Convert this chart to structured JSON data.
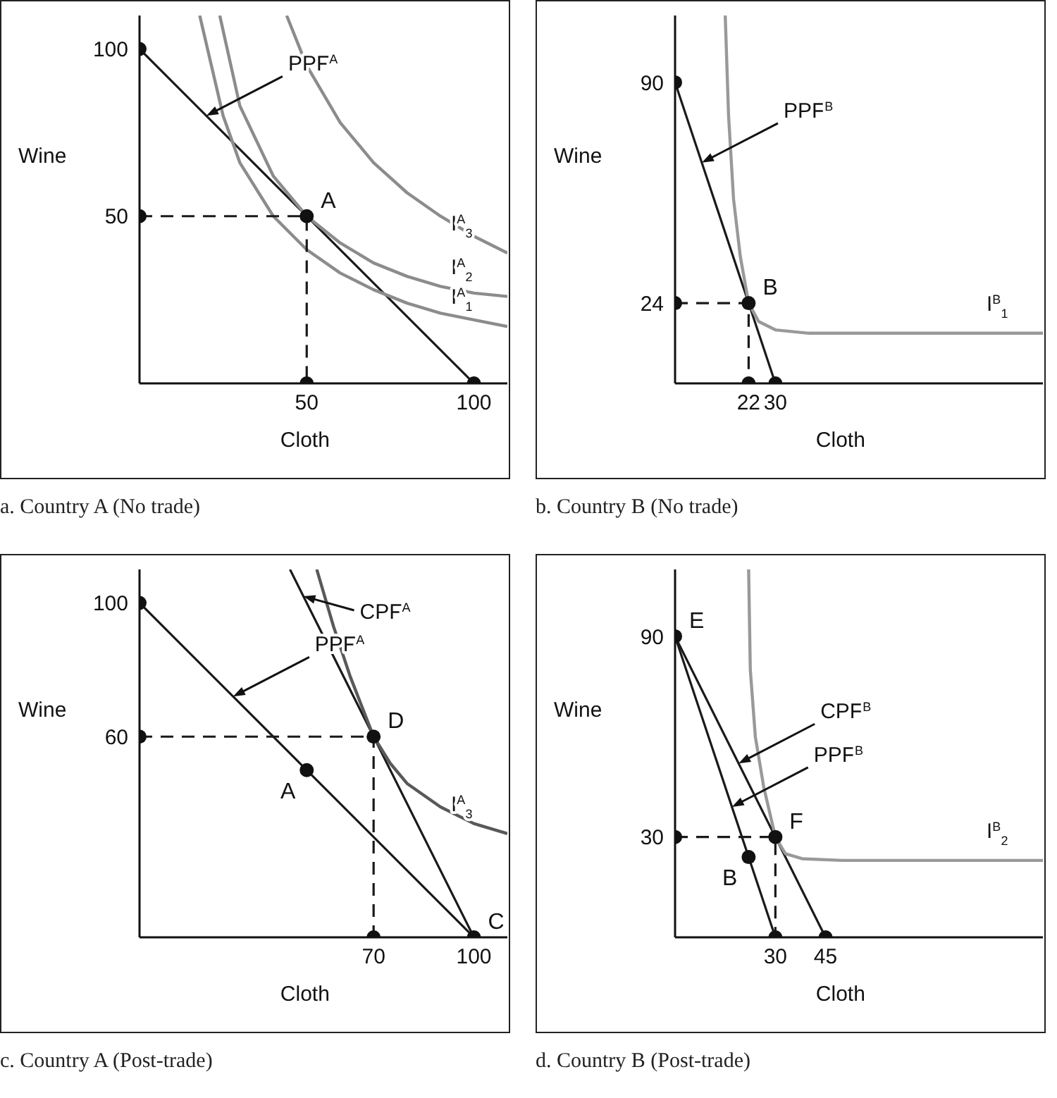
{
  "chart_data": [
    {
      "type": "line",
      "title": "a. Country A (No trade)",
      "xlabel": "Cloth",
      "ylabel": "Wine",
      "xlim": [
        0,
        110
      ],
      "ylim": [
        0,
        110
      ],
      "xticks": [
        50,
        100
      ],
      "yticks": [
        50,
        100
      ],
      "series": [
        {
          "type": "line",
          "color": "#1a1a1a",
          "x": [
            0,
            100
          ],
          "values": [
            100,
            0
          ]
        },
        {
          "type": "line",
          "name": "I$^{A}$$_{3}$",
          "color": "#8c8c8c",
          "x": [
            44,
            50,
            60,
            70,
            80,
            90,
            100,
            110
          ],
          "values": [
            110,
            95,
            78,
            66,
            57,
            50,
            44,
            39
          ]
        },
        {
          "type": "line",
          "name": "I$^{A}$$_{2}$",
          "color": "#8c8c8c",
          "x": [
            24,
            30,
            40,
            50,
            60,
            70,
            80,
            90,
            100,
            110
          ],
          "values": [
            110,
            83,
            62,
            50,
            42,
            36,
            32,
            29,
            27,
            26
          ]
        },
        {
          "type": "line",
          "name": "I$^{A}$$_{1}$",
          "color": "#8c8c8c",
          "x": [
            18,
            25,
            30,
            40,
            50,
            60,
            70,
            80,
            90,
            100,
            110
          ],
          "values": [
            110,
            80,
            66,
            50,
            40,
            33,
            28,
            24,
            21,
            19,
            17
          ]
        },
        {
          "type": "line",
          "line_style": "dashed",
          "color": "#1a1a1a",
          "x": [
            0,
            50,
            50
          ],
          "values": [
            50,
            50,
            0
          ]
        },
        {
          "type": "scatter",
          "marker": "circle",
          "color": "#111111",
          "x": [
            0,
            0,
            50,
            50,
            100
          ],
          "values": [
            100,
            50,
            50,
            0,
            0
          ],
          "value_labels": [
            null,
            null,
            "A",
            null,
            null
          ]
        }
      ],
      "annotations": [
        {
          "text": "PPF$^{A}$",
          "x": 20,
          "y": 80
        }
      ]
    },
    {
      "type": "line",
      "title": "b. Country B (No trade)",
      "xlabel": "Cloth",
      "ylabel": "Wine",
      "xlim": [
        0,
        110
      ],
      "ylim": [
        0,
        110
      ],
      "xticks": [
        22,
        30
      ],
      "yticks": [
        24,
        90
      ],
      "series": [
        {
          "type": "line",
          "color": "#1a1a1a",
          "x": [
            0,
            30
          ],
          "values": [
            90,
            0
          ]
        },
        {
          "type": "line",
          "name": "I$^{B}$$_{1}$",
          "color": "#999999",
          "x": [
            15,
            16,
            17.5,
            19.5,
            22,
            25,
            30,
            40,
            110
          ],
          "values": [
            110,
            80,
            55,
            38,
            24,
            18.5,
            16,
            15,
            15
          ]
        },
        {
          "type": "line",
          "line_style": "dashed",
          "color": "#1a1a1a",
          "x": [
            0,
            22,
            22
          ],
          "values": [
            24,
            24,
            0
          ]
        },
        {
          "type": "scatter",
          "marker": "circle",
          "color": "#111111",
          "x": [
            0,
            0,
            22,
            22,
            30
          ],
          "values": [
            90,
            24,
            24,
            0,
            0
          ],
          "value_labels": [
            null,
            null,
            "B",
            null,
            null
          ]
        }
      ],
      "annotations": [
        {
          "text": "PPF$^{B}$",
          "x": 8,
          "y": 66
        }
      ]
    },
    {
      "type": "line",
      "title": "c. Country A (Post-trade)",
      "xlabel": "Cloth",
      "ylabel": "Wine",
      "xlim": [
        0,
        110
      ],
      "ylim": [
        0,
        110
      ],
      "xticks": [
        70,
        100
      ],
      "yticks": [
        60,
        100
      ],
      "series": [
        {
          "type": "line",
          "color": "#1a1a1a",
          "x": [
            0,
            100
          ],
          "values": [
            100,
            0
          ]
        },
        {
          "type": "line",
          "color": "#1a1a1a",
          "x": [
            45,
            100
          ],
          "values": [
            110,
            0
          ]
        },
        {
          "type": "line",
          "name": "I$^{A}$$_{3}$",
          "color": "#595959",
          "x": [
            53,
            58,
            63,
            70,
            75,
            80,
            90,
            100,
            110
          ],
          "values": [
            110,
            93,
            78,
            60,
            52,
            46,
            39,
            34,
            31
          ]
        },
        {
          "type": "line",
          "line_style": "dashed",
          "color": "#1a1a1a",
          "x": [
            0,
            70,
            70
          ],
          "values": [
            60,
            60,
            0
          ]
        },
        {
          "type": "scatter",
          "marker": "circle",
          "color": "#111111",
          "x": [
            0,
            0,
            50,
            70,
            70,
            100
          ],
          "values": [
            100,
            60,
            50,
            60,
            0,
            0
          ],
          "value_labels": [
            null,
            null,
            "A",
            "D",
            null,
            "C"
          ]
        }
      ],
      "annotations": [
        {
          "text": "PPF$^{A}$",
          "x": 28,
          "y": 72
        },
        {
          "text": "CPF$^{A}$",
          "x": 49,
          "y": 102
        }
      ]
    },
    {
      "type": "line",
      "title": "d. Country B (Post-trade)",
      "xlabel": "Cloth",
      "ylabel": "Wine",
      "xlim": [
        0,
        110
      ],
      "ylim": [
        0,
        110
      ],
      "xticks": [
        30,
        45
      ],
      "yticks": [
        30,
        90
      ],
      "series": [
        {
          "type": "line",
          "color": "#1a1a1a",
          "x": [
            0,
            30
          ],
          "values": [
            90,
            0
          ]
        },
        {
          "type": "line",
          "color": "#1a1a1a",
          "x": [
            0,
            45
          ],
          "values": [
            90,
            0
          ]
        },
        {
          "type": "line",
          "name": "I$^{B}$$_{2}$",
          "color": "#999999",
          "x": [
            22,
            22.5,
            24,
            26.5,
            30,
            33,
            38,
            50,
            110
          ],
          "values": [
            110,
            80,
            60,
            45,
            30,
            25,
            23.5,
            23,
            23
          ]
        },
        {
          "type": "line",
          "line_style": "dashed",
          "color": "#1a1a1a",
          "x": [
            0,
            30,
            30
          ],
          "values": [
            30,
            30,
            0
          ]
        },
        {
          "type": "scatter",
          "marker": "circle",
          "color": "#111111",
          "x": [
            0,
            0,
            22,
            30,
            30,
            45
          ],
          "values": [
            90,
            30,
            24,
            30,
            0,
            0
          ],
          "value_labels": [
            "E",
            null,
            "B",
            "F",
            null,
            null
          ]
        }
      ],
      "annotations": [
        {
          "text": "CPF$^{B}$",
          "x": 19,
          "y": 52
        },
        {
          "text": "PPF$^{B}$",
          "x": 17,
          "y": 39
        }
      ]
    }
  ]
}
